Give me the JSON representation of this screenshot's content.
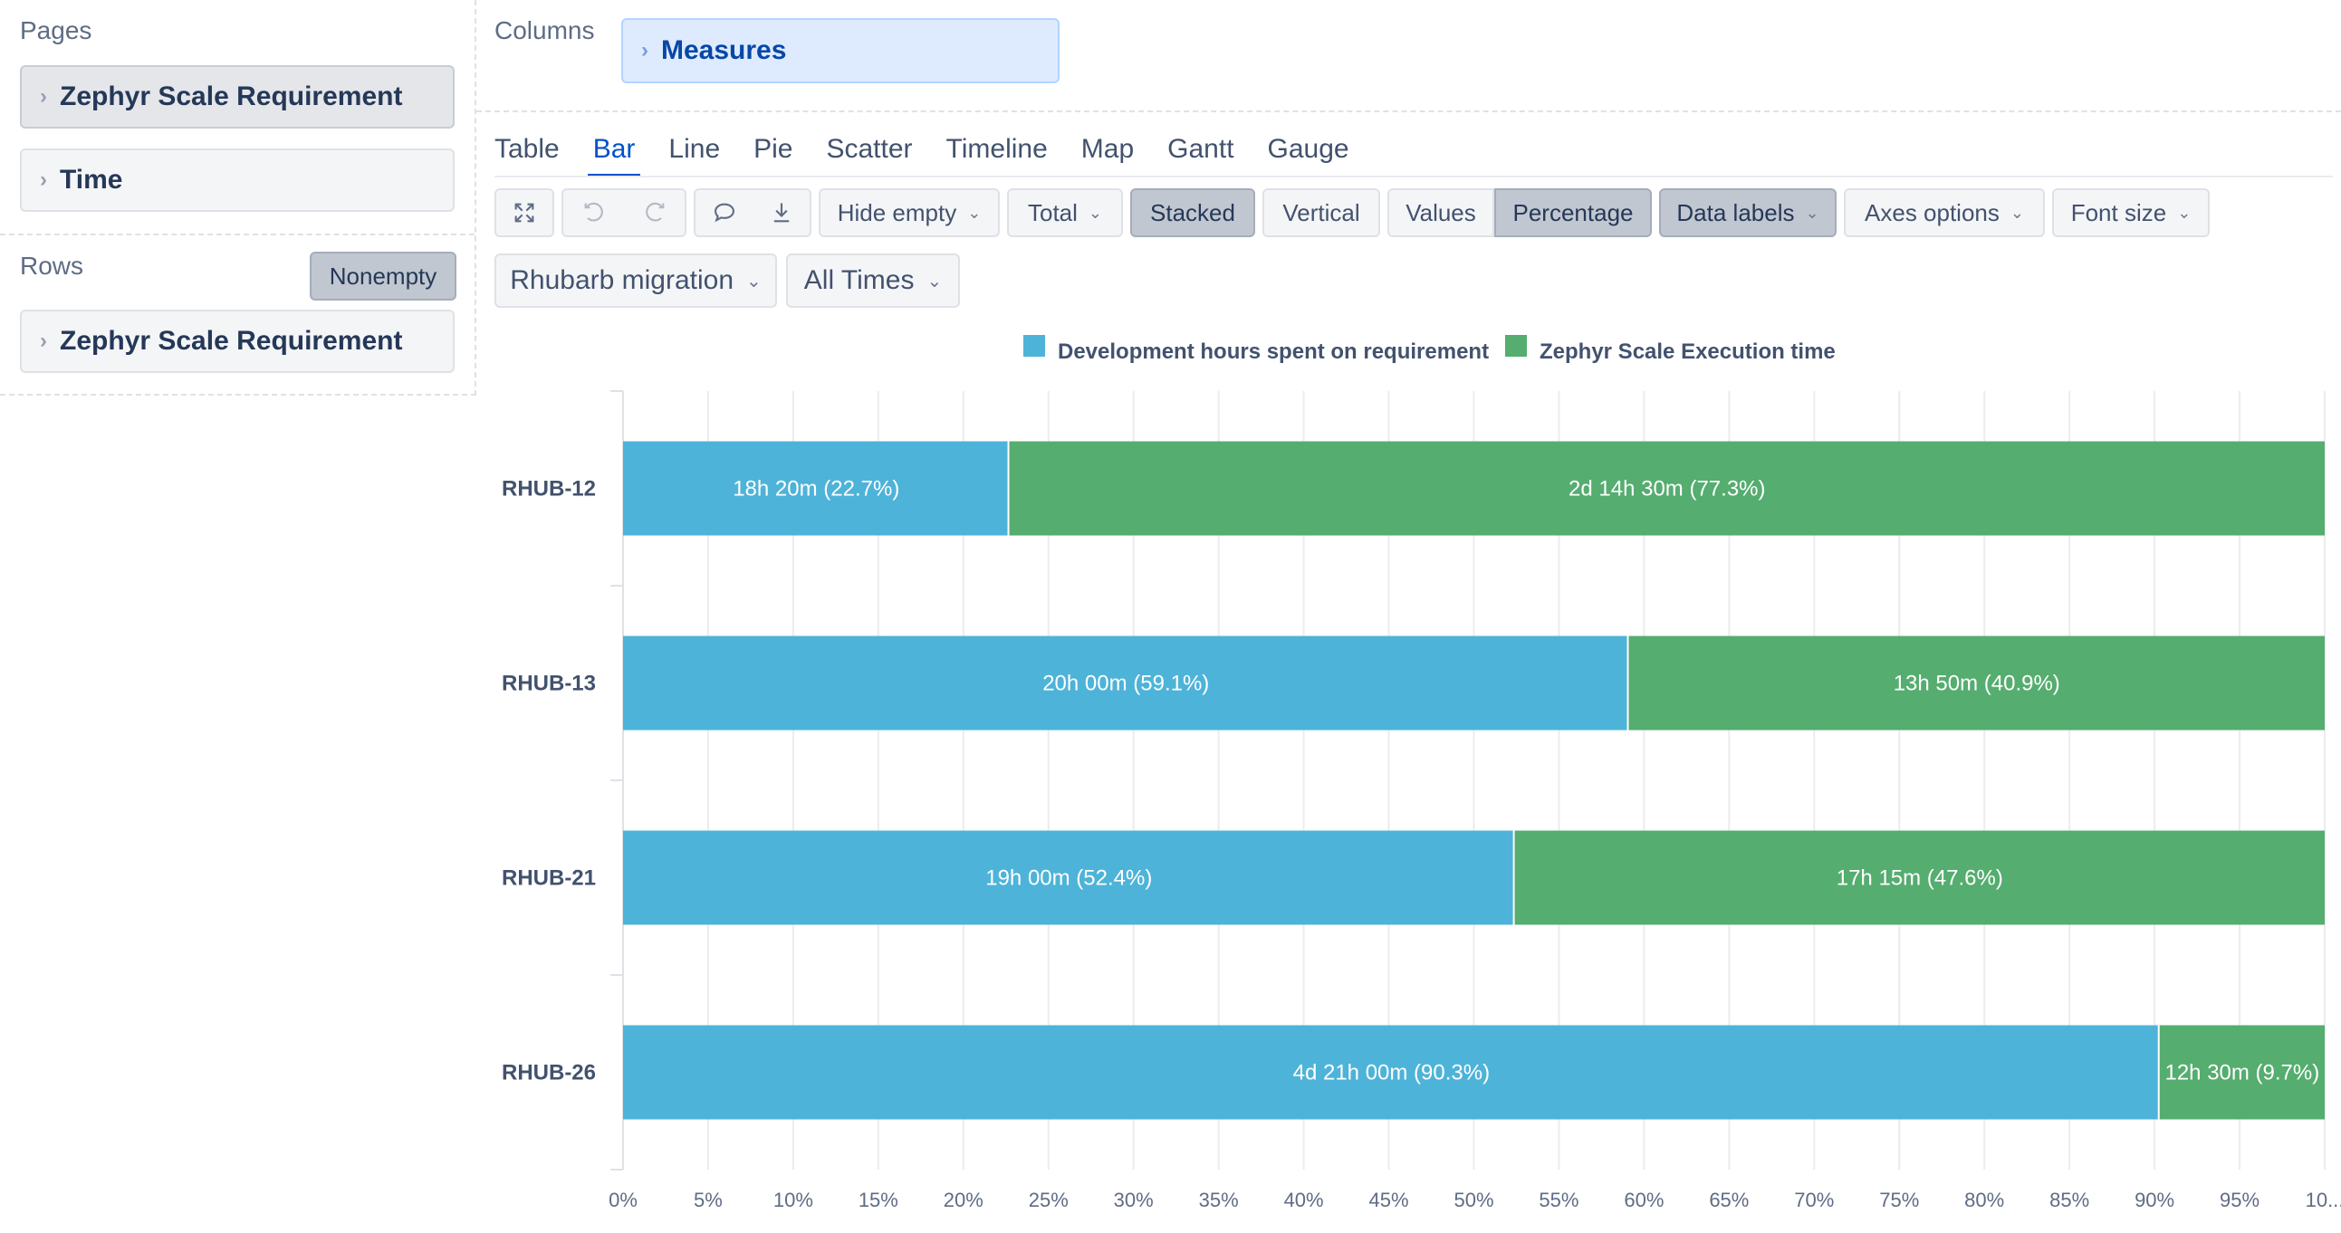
{
  "pages": {
    "title": "Pages",
    "items": [
      {
        "label": "Zephyr Scale Requirement"
      },
      {
        "label": "Time"
      }
    ]
  },
  "rows": {
    "title": "Rows",
    "nonempty_label": "Nonempty",
    "items": [
      {
        "label": "Zephyr Scale Requirement"
      }
    ]
  },
  "columns": {
    "title": "Columns",
    "measures_label": "Measures"
  },
  "tabs": [
    "Table",
    "Bar",
    "Line",
    "Pie",
    "Scatter",
    "Timeline",
    "Map",
    "Gantt",
    "Gauge"
  ],
  "active_tab": "Bar",
  "toolbar": {
    "hide_empty": "Hide empty",
    "total": "Total",
    "stacked": "Stacked",
    "vertical": "Vertical",
    "values": "Values",
    "percentage": "Percentage",
    "data_labels": "Data labels",
    "axes_options": "Axes options",
    "font_size": "Font size",
    "icons": [
      "expand-icon",
      "undo-icon",
      "redo-icon",
      "comment-icon",
      "download-icon"
    ]
  },
  "filters": {
    "project": "Rhubarb migration",
    "time": "All Times"
  },
  "colors": {
    "dev": "#4eb3d8",
    "exec": "#55ad6f"
  },
  "chart_data": {
    "type": "bar",
    "orientation": "horizontal",
    "stacked": true,
    "percentage": true,
    "categories": [
      "RHUB-12",
      "RHUB-13",
      "RHUB-21",
      "RHUB-26"
    ],
    "series": [
      {
        "name": "Development hours spent on requirement",
        "color": "#4eb3d8",
        "values": [
          22.7,
          59.1,
          52.4,
          90.3
        ],
        "labels": [
          "18h 20m (22.7%)",
          "20h 00m (59.1%)",
          "19h 00m (52.4%)",
          "4d 21h 00m (90.3%)"
        ]
      },
      {
        "name": "Zephyr Scale Execution time",
        "color": "#55ad6f",
        "values": [
          77.3,
          40.9,
          47.6,
          9.7
        ],
        "labels": [
          "2d 14h 30m (77.3%)",
          "13h 50m (40.9%)",
          "17h 15m (47.6%)",
          "12h 30m (9.7%)"
        ]
      }
    ],
    "xlim": [
      0,
      100
    ],
    "x_ticks": [
      "0%",
      "5%",
      "10%",
      "15%",
      "20%",
      "25%",
      "30%",
      "35%",
      "40%",
      "45%",
      "50%",
      "55%",
      "60%",
      "65%",
      "70%",
      "75%",
      "80%",
      "85%",
      "90%",
      "95%",
      "10..."
    ],
    "grid": true,
    "legend_position": "top-center"
  }
}
